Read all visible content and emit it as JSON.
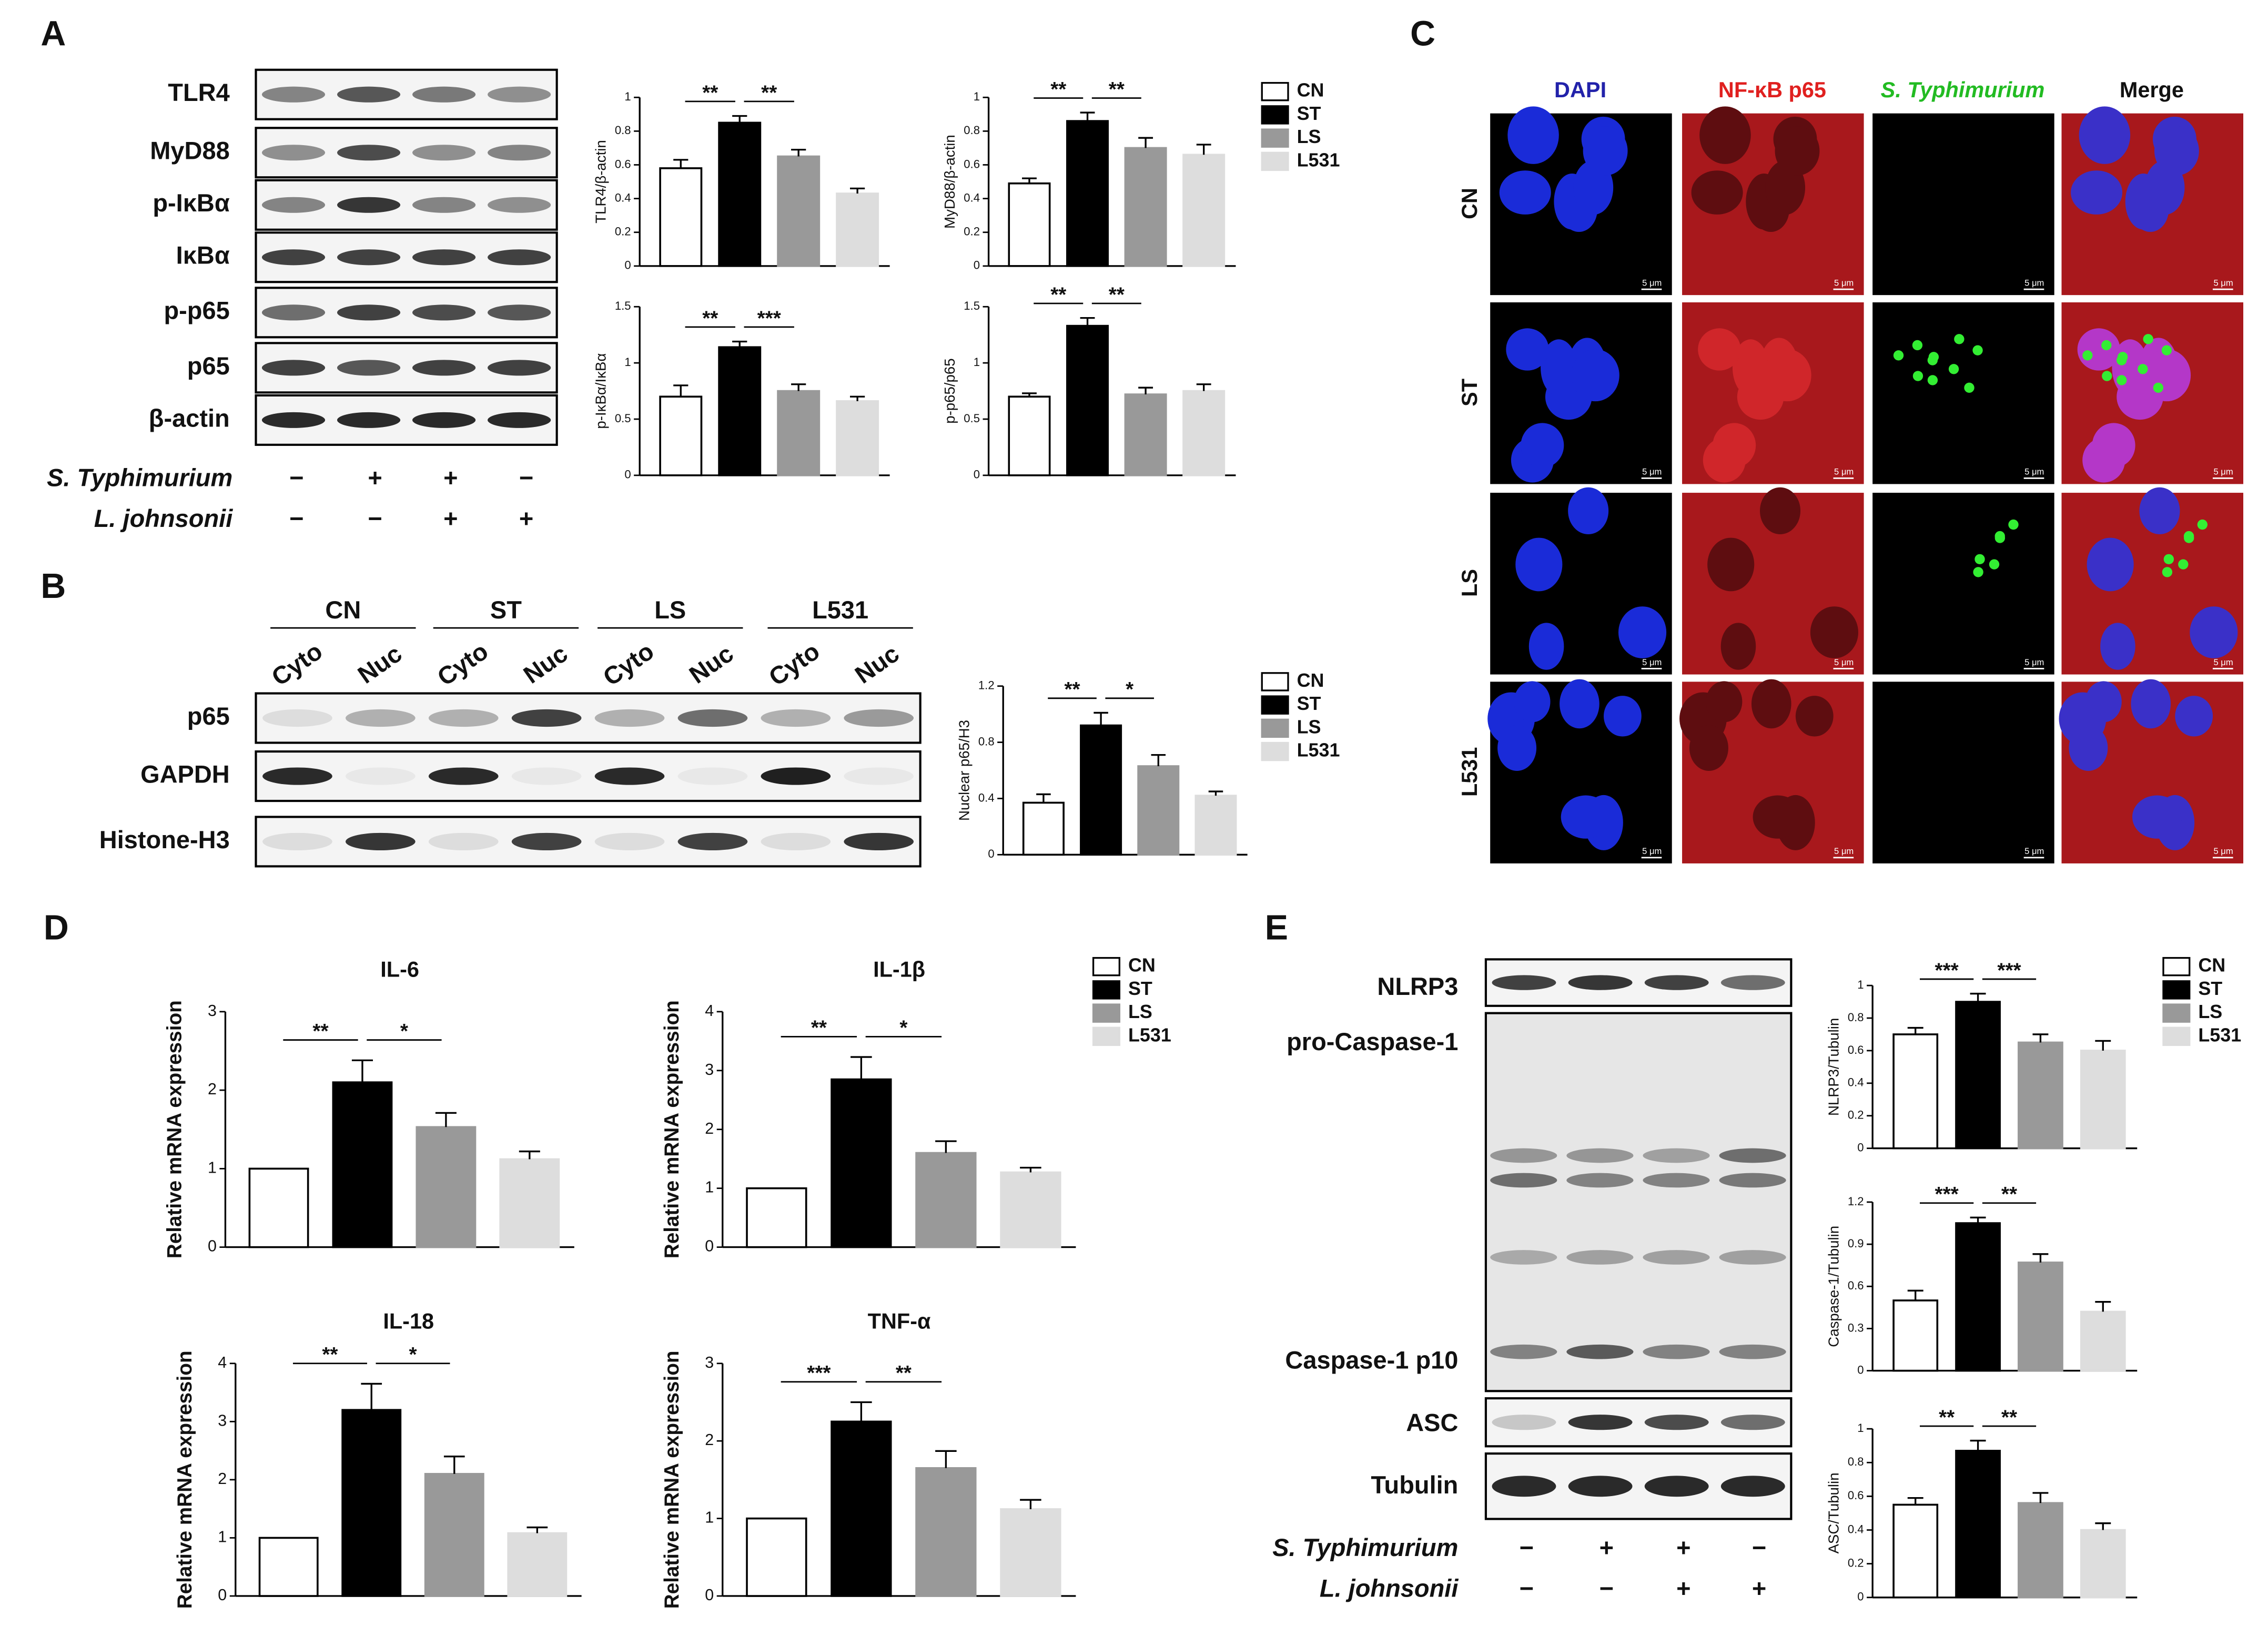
{
  "panels": {
    "A": {
      "label": "A",
      "blot_labels": [
        "TLR4",
        "MyD88",
        "p-IκBα",
        "IκBα",
        "p-p65",
        "p65",
        "β-actin"
      ],
      "treatments": [
        {
          "name": "S. Typhimurium",
          "signs": [
            "−",
            "+",
            "+",
            "−"
          ]
        },
        {
          "name": "L. johnsonii",
          "signs": [
            "−",
            "−",
            "+",
            "+"
          ]
        }
      ]
    },
    "B": {
      "label": "B",
      "groups": [
        "CN",
        "ST",
        "LS",
        "L531"
      ],
      "fractions": [
        "Cyto",
        "Nuc",
        "Cyto",
        "Nuc",
        "Cyto",
        "Nuc",
        "Cyto",
        "Nuc"
      ],
      "blot_labels": [
        "p65",
        "GAPDH",
        "Histone-H3"
      ]
    },
    "C": {
      "label": "C",
      "columns": [
        "DAPI",
        "NF-κB p65",
        "S. Typhimurium",
        "Merge"
      ],
      "rows": [
        "CN",
        "ST",
        "LS",
        "L531"
      ],
      "scale_bar": "5 μm"
    },
    "D": {
      "label": "D"
    },
    "E": {
      "label": "E",
      "blot_labels": [
        "NLRP3",
        "pro-Caspase-1",
        "Caspase-1 p10",
        "ASC",
        "Tubulin"
      ],
      "treatments": [
        {
          "name": "S. Typhimurium",
          "signs": [
            "−",
            "+",
            "+",
            "−"
          ]
        },
        {
          "name": "L. johnsonii",
          "signs": [
            "−",
            "−",
            "+",
            "+"
          ]
        }
      ]
    }
  },
  "legends": [
    {
      "labels": [
        "CN",
        "ST",
        "LS",
        "L531"
      ],
      "colors": [
        "#ffffff",
        "#000000",
        "#999999",
        "#dddddd"
      ]
    },
    {
      "labels": [
        "CN",
        "ST",
        "LS",
        "L531"
      ],
      "colors": [
        "#ffffff",
        "#000000",
        "#999999",
        "#dddddd"
      ]
    },
    {
      "labels": [
        "CN",
        "ST",
        "LS",
        "L531"
      ],
      "colors": [
        "#ffffff",
        "#000000",
        "#999999",
        "#dddddd"
      ]
    },
    {
      "labels": [
        "CN",
        "ST",
        "LS",
        "L531"
      ],
      "colors": [
        "#ffffff",
        "#000000",
        "#999999",
        "#dddddd"
      ]
    }
  ],
  "chart_data": [
    {
      "type": "bar",
      "ylabel": "TLR4/β-actin",
      "values": [
        0.58,
        0.85,
        0.65,
        0.43
      ],
      "errors": [
        0.05,
        0.04,
        0.04,
        0.03
      ],
      "colors": [
        "#ffffff",
        "#000000",
        "#999999",
        "#dddddd"
      ],
      "ylim": [
        0,
        1
      ],
      "yticks": [
        0,
        0.2,
        0.4,
        0.6,
        0.8,
        1
      ],
      "significance": [
        {
          "from": 0,
          "to": 1,
          "label": "**"
        },
        {
          "from": 1,
          "to": 2,
          "label": "**"
        }
      ]
    },
    {
      "type": "bar",
      "ylabel": "MyD88/β-actin",
      "values": [
        0.49,
        0.86,
        0.7,
        0.66
      ],
      "errors": [
        0.03,
        0.05,
        0.06,
        0.06
      ],
      "colors": [
        "#ffffff",
        "#000000",
        "#999999",
        "#dddddd"
      ],
      "ylim": [
        0,
        1
      ],
      "yticks": [
        0,
        0.2,
        0.4,
        0.6,
        0.8,
        1
      ],
      "significance": [
        {
          "from": 0,
          "to": 1,
          "label": "**"
        },
        {
          "from": 1,
          "to": 2,
          "label": "**"
        }
      ]
    },
    {
      "type": "bar",
      "ylabel": "p-IκBα/IκBα",
      "values": [
        0.7,
        1.14,
        0.75,
        0.66
      ],
      "errors": [
        0.1,
        0.05,
        0.06,
        0.04
      ],
      "colors": [
        "#ffffff",
        "#000000",
        "#999999",
        "#dddddd"
      ],
      "ylim": [
        0,
        1.5
      ],
      "yticks": [
        0,
        0.5,
        1,
        1.5
      ],
      "significance": [
        {
          "from": 0,
          "to": 1,
          "label": "**"
        },
        {
          "from": 1,
          "to": 2,
          "label": "***"
        }
      ]
    },
    {
      "type": "bar",
      "ylabel": "p-p65/p65",
      "values": [
        0.7,
        1.33,
        0.72,
        0.75
      ],
      "errors": [
        0.03,
        0.07,
        0.06,
        0.06
      ],
      "colors": [
        "#ffffff",
        "#000000",
        "#999999",
        "#dddddd"
      ],
      "ylim": [
        0,
        1.5
      ],
      "yticks": [
        0,
        0.5,
        1,
        1.5
      ],
      "significance": [
        {
          "from": 0,
          "to": 1,
          "label": "**"
        },
        {
          "from": 1,
          "to": 2,
          "label": "**"
        }
      ]
    },
    {
      "type": "bar",
      "ylabel": "Nuclear p65/H3",
      "values": [
        0.37,
        0.92,
        0.63,
        0.42
      ],
      "errors": [
        0.06,
        0.09,
        0.08,
        0.03
      ],
      "colors": [
        "#ffffff",
        "#000000",
        "#999999",
        "#dddddd"
      ],
      "ylim": [
        0,
        1.2
      ],
      "yticks": [
        0,
        0.4,
        0.8,
        1.2
      ],
      "significance": [
        {
          "from": 0,
          "to": 1,
          "label": "**"
        },
        {
          "from": 1,
          "to": 2,
          "label": "*"
        }
      ]
    },
    {
      "type": "bar",
      "title": "IL-6",
      "ylabel": "Relative mRNA expression",
      "values": [
        1,
        2.1,
        1.53,
        1.12
      ],
      "errors": [
        null,
        0.28,
        0.18,
        0.1
      ],
      "colors": [
        "#ffffff",
        "#000000",
        "#999999",
        "#dddddd"
      ],
      "ylim": [
        0,
        3
      ],
      "yticks": [
        0,
        1,
        2,
        3
      ],
      "significance": [
        {
          "from": 0,
          "to": 1,
          "label": "**"
        },
        {
          "from": 1,
          "to": 2,
          "label": "*"
        }
      ]
    },
    {
      "type": "bar",
      "title": "IL-1β",
      "ylabel": "Relative mRNA expression",
      "values": [
        1,
        2.85,
        1.6,
        1.27
      ],
      "errors": [
        null,
        0.38,
        0.2,
        0.08
      ],
      "colors": [
        "#ffffff",
        "#000000",
        "#999999",
        "#dddddd"
      ],
      "ylim": [
        0,
        4
      ],
      "yticks": [
        0,
        1,
        2,
        3,
        4
      ],
      "significance": [
        {
          "from": 0,
          "to": 1,
          "label": "**"
        },
        {
          "from": 1,
          "to": 2,
          "label": "*"
        }
      ]
    },
    {
      "type": "bar",
      "title": "IL-18",
      "ylabel": "Relative mRNA expression",
      "values": [
        1,
        3.2,
        2.1,
        1.08
      ],
      "errors": [
        null,
        0.45,
        0.3,
        0.1
      ],
      "colors": [
        "#ffffff",
        "#000000",
        "#999999",
        "#dddddd"
      ],
      "ylim": [
        0,
        4
      ],
      "yticks": [
        0,
        1,
        2,
        3,
        4
      ],
      "significance": [
        {
          "from": 0,
          "to": 1,
          "label": "**"
        },
        {
          "from": 1,
          "to": 2,
          "label": "*"
        }
      ]
    },
    {
      "type": "bar",
      "title": "TNF-α",
      "ylabel": "Relative mRNA expression",
      "values": [
        1,
        2.25,
        1.65,
        1.12
      ],
      "errors": [
        null,
        0.25,
        0.22,
        0.12
      ],
      "colors": [
        "#ffffff",
        "#000000",
        "#999999",
        "#dddddd"
      ],
      "ylim": [
        0,
        3
      ],
      "yticks": [
        0,
        1,
        2,
        3
      ],
      "significance": [
        {
          "from": 0,
          "to": 1,
          "label": "***"
        },
        {
          "from": 1,
          "to": 2,
          "label": "**"
        }
      ]
    },
    {
      "type": "bar",
      "ylabel": "NLRP3/Tubulin",
      "values": [
        0.7,
        0.9,
        0.65,
        0.6
      ],
      "errors": [
        0.04,
        0.05,
        0.05,
        0.06
      ],
      "colors": [
        "#ffffff",
        "#000000",
        "#999999",
        "#dddddd"
      ],
      "ylim": [
        0,
        1
      ],
      "yticks": [
        0,
        0.2,
        0.4,
        0.6,
        0.8,
        1
      ],
      "significance": [
        {
          "from": 0,
          "to": 1,
          "label": "***"
        },
        {
          "from": 1,
          "to": 2,
          "label": "***"
        }
      ]
    },
    {
      "type": "bar",
      "ylabel": "Caspase-1/Tubulin",
      "values": [
        0.5,
        1.05,
        0.77,
        0.42
      ],
      "errors": [
        0.07,
        0.04,
        0.06,
        0.07
      ],
      "colors": [
        "#ffffff",
        "#000000",
        "#999999",
        "#dddddd"
      ],
      "ylim": [
        0,
        1.2
      ],
      "yticks": [
        0,
        0.3,
        0.6,
        0.9,
        1.2
      ],
      "significance": [
        {
          "from": 0,
          "to": 1,
          "label": "***"
        },
        {
          "from": 1,
          "to": 2,
          "label": "**"
        }
      ]
    },
    {
      "type": "bar",
      "ylabel": "ASC/Tubulin",
      "values": [
        0.55,
        0.87,
        0.56,
        0.4
      ],
      "errors": [
        0.04,
        0.06,
        0.06,
        0.04
      ],
      "colors": [
        "#ffffff",
        "#000000",
        "#999999",
        "#dddddd"
      ],
      "ylim": [
        0,
        1
      ],
      "yticks": [
        0,
        0.2,
        0.4,
        0.6,
        0.8,
        1
      ],
      "significance": [
        {
          "from": 0,
          "to": 1,
          "label": "**"
        },
        {
          "from": 1,
          "to": 2,
          "label": "**"
        }
      ]
    }
  ]
}
